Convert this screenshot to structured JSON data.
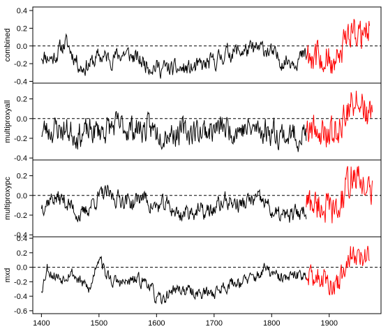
{
  "chart_data": {
    "type": "line",
    "layout": "vertically stacked panels sharing one x axis",
    "x_axis": {
      "range": [
        1385,
        1990
      ],
      "ticks": [
        1400,
        1500,
        1600,
        1700,
        1800,
        1900
      ],
      "tick_labels": [
        "1400",
        "1500",
        "1600",
        "1700",
        "1800",
        "1900"
      ]
    },
    "series_colors": {
      "reconstruction": "#000000",
      "instrumental": "#ff0000"
    },
    "instrumental_period": [
      1860,
      1975
    ],
    "zero_reference_line": {
      "style": "dashed",
      "y": 0
    },
    "panels": [
      {
        "ylabel": "combined",
        "ylim": [
          -0.42,
          0.44
        ],
        "yticks": [
          -0.4,
          -0.2,
          0.0,
          0.2,
          0.4
        ],
        "ytick_labels": [
          "-0.4",
          "-0.2",
          "0.0",
          "0.2",
          "0.4"
        ],
        "anchors": [
          [
            1400,
            -0.1
          ],
          [
            1420,
            -0.14
          ],
          [
            1442,
            0.04
          ],
          [
            1455,
            -0.1
          ],
          [
            1470,
            -0.25
          ],
          [
            1490,
            -0.18
          ],
          [
            1500,
            -0.12
          ],
          [
            1520,
            -0.14
          ],
          [
            1545,
            -0.08
          ],
          [
            1575,
            -0.18
          ],
          [
            1600,
            -0.24
          ],
          [
            1630,
            -0.27
          ],
          [
            1660,
            -0.26
          ],
          [
            1685,
            -0.22
          ],
          [
            1705,
            -0.16
          ],
          [
            1720,
            -0.08
          ],
          [
            1740,
            -0.06
          ],
          [
            1765,
            -0.05
          ],
          [
            1790,
            -0.03
          ],
          [
            1805,
            -0.12
          ],
          [
            1820,
            -0.17
          ],
          [
            1840,
            -0.15
          ],
          [
            1858,
            -0.12
          ]
        ],
        "noise_amp": 0.1,
        "red_anchors": [
          [
            1862,
            -0.08
          ],
          [
            1880,
            -0.12
          ],
          [
            1900,
            -0.18
          ],
          [
            1915,
            -0.2
          ],
          [
            1928,
            0.05
          ],
          [
            1940,
            0.22
          ],
          [
            1950,
            0.15
          ],
          [
            1960,
            0.12
          ],
          [
            1968,
            0.22
          ]
        ],
        "red_noise": 0.14,
        "red_end": 1970,
        "seed": 11
      },
      {
        "ylabel": "multiproxyall",
        "ylim": [
          -0.42,
          0.36
        ],
        "yticks": [
          -0.4,
          -0.2,
          0.0,
          0.2
        ],
        "ytick_labels": [
          "-0.4",
          "-0.2",
          "0.0",
          "0.2"
        ],
        "anchors": [
          [
            1400,
            -0.12
          ],
          [
            1430,
            -0.1
          ],
          [
            1470,
            -0.16
          ],
          [
            1500,
            -0.12
          ],
          [
            1530,
            -0.08
          ],
          [
            1560,
            -0.1
          ],
          [
            1600,
            -0.12
          ],
          [
            1640,
            -0.14
          ],
          [
            1680,
            -0.12
          ],
          [
            1720,
            -0.1
          ],
          [
            1760,
            -0.11
          ],
          [
            1800,
            -0.12
          ],
          [
            1830,
            -0.18
          ],
          [
            1858,
            -0.15
          ]
        ],
        "noise_amp": 0.14,
        "red_anchors": [
          [
            1862,
            -0.08
          ],
          [
            1880,
            -0.12
          ],
          [
            1900,
            -0.15
          ],
          [
            1915,
            -0.15
          ],
          [
            1928,
            0.05
          ],
          [
            1940,
            0.2
          ],
          [
            1950,
            0.15
          ],
          [
            1960,
            0.12
          ],
          [
            1972,
            0.02
          ]
        ],
        "red_noise": 0.13,
        "red_end": 1975,
        "seed": 23
      },
      {
        "ylabel": "multiproxypc",
        "ylim": [
          -0.42,
          0.36
        ],
        "yticks": [
          -0.4,
          -0.2,
          0.0,
          0.2
        ],
        "ytick_labels": [
          "-0.4",
          "-0.2",
          "0.0",
          "0.2"
        ],
        "anchors": [
          [
            1400,
            -0.1
          ],
          [
            1420,
            -0.02
          ],
          [
            1440,
            -0.05
          ],
          [
            1470,
            -0.22
          ],
          [
            1490,
            -0.06
          ],
          [
            1510,
            0.02
          ],
          [
            1525,
            -0.02
          ],
          [
            1545,
            -0.04
          ],
          [
            1560,
            -0.08
          ],
          [
            1575,
            0.0
          ],
          [
            1595,
            -0.12
          ],
          [
            1620,
            -0.1
          ],
          [
            1640,
            -0.2
          ],
          [
            1660,
            -0.15
          ],
          [
            1685,
            -0.18
          ],
          [
            1700,
            -0.14
          ],
          [
            1720,
            -0.05
          ],
          [
            1745,
            -0.1
          ],
          [
            1770,
            -0.04
          ],
          [
            1790,
            -0.08
          ],
          [
            1805,
            -0.2
          ],
          [
            1830,
            -0.22
          ],
          [
            1858,
            -0.14
          ]
        ],
        "noise_amp": 0.09,
        "red_anchors": [
          [
            1862,
            -0.06
          ],
          [
            1880,
            -0.1
          ],
          [
            1900,
            -0.14
          ],
          [
            1915,
            -0.18
          ],
          [
            1928,
            0.05
          ],
          [
            1940,
            0.22
          ],
          [
            1950,
            0.15
          ],
          [
            1960,
            0.12
          ],
          [
            1972,
            0.02
          ]
        ],
        "red_noise": 0.13,
        "red_end": 1975,
        "seed": 37
      },
      {
        "ylabel": "mxd",
        "ylim": [
          -0.64,
          0.42
        ],
        "yticks": [
          -0.6,
          -0.4,
          -0.2,
          0.0,
          0.2,
          0.4
        ],
        "ytick_labels": [
          "-0.6",
          "-0.4",
          "-0.2",
          "0.0",
          "0.2",
          "0.4"
        ],
        "anchors": [
          [
            1400,
            -0.3
          ],
          [
            1410,
            0.0
          ],
          [
            1420,
            -0.1
          ],
          [
            1435,
            -0.15
          ],
          [
            1450,
            -0.05
          ],
          [
            1470,
            -0.22
          ],
          [
            1485,
            -0.32
          ],
          [
            1495,
            0.05
          ],
          [
            1502,
            0.2
          ],
          [
            1510,
            -0.08
          ],
          [
            1525,
            -0.2
          ],
          [
            1545,
            -0.22
          ],
          [
            1565,
            -0.18
          ],
          [
            1585,
            -0.2
          ],
          [
            1598,
            -0.42
          ],
          [
            1610,
            -0.48
          ],
          [
            1625,
            -0.32
          ],
          [
            1640,
            -0.3
          ],
          [
            1660,
            -0.34
          ],
          [
            1680,
            -0.36
          ],
          [
            1700,
            -0.35
          ],
          [
            1720,
            -0.25
          ],
          [
            1740,
            -0.2
          ],
          [
            1760,
            -0.18
          ],
          [
            1775,
            -0.12
          ],
          [
            1790,
            -0.02
          ],
          [
            1810,
            -0.15
          ],
          [
            1830,
            -0.16
          ],
          [
            1858,
            -0.08
          ]
        ],
        "noise_amp": 0.09,
        "red_anchors": [
          [
            1862,
            -0.08
          ],
          [
            1880,
            -0.12
          ],
          [
            1900,
            -0.2
          ],
          [
            1915,
            -0.22
          ],
          [
            1928,
            0.02
          ],
          [
            1940,
            0.2
          ],
          [
            1950,
            0.18
          ],
          [
            1960,
            0.14
          ],
          [
            1968,
            0.24
          ]
        ],
        "red_noise": 0.13,
        "red_end": 1970,
        "seed": 53
      }
    ]
  }
}
